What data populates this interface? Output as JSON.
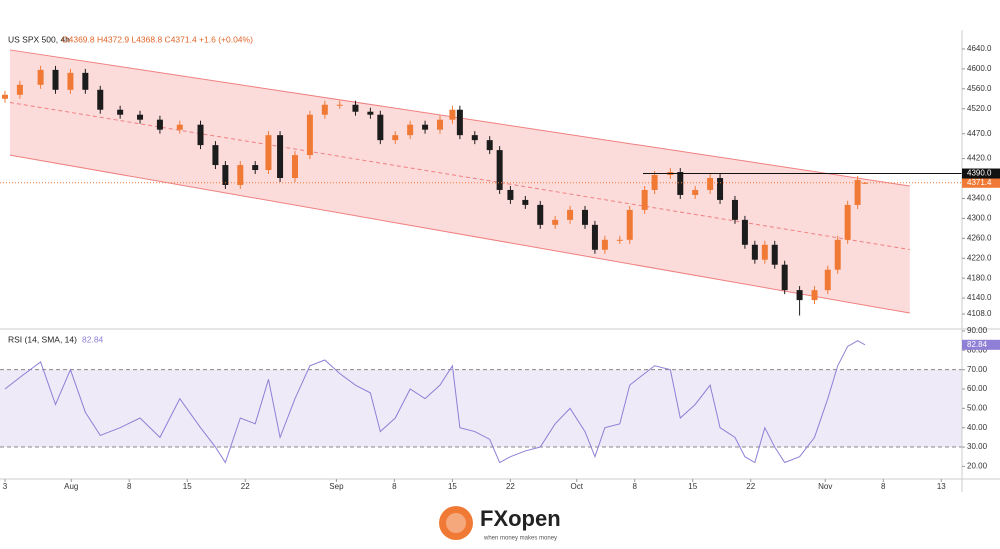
{
  "header": {
    "symbol": "US SPX 500, 4h",
    "quote": "O4369.8 H4372.9 L4368.8 C4371.4 +1.6 (+0.04%)"
  },
  "logo": {
    "brand": "FXopen",
    "tagline": "when money makes money"
  },
  "chart_data": [
    {
      "type": "candlestick",
      "x": [
        -8,
        -6.2,
        -3.7,
        -1.9,
        -0.1,
        1.7,
        3.5,
        5.9,
        8.3,
        10.7,
        13.1,
        15.6,
        17.4,
        18.6,
        20.4,
        22.2,
        23.8,
        25.2,
        27,
        28.8,
        30.6,
        32.4,
        34.3,
        36.1,
        37.3,
        39.1,
        40.9,
        42.7,
        44.5,
        46,
        46.9,
        48.7,
        50.5,
        51.7,
        53,
        54.8,
        56.6,
        58.4,
        60.2,
        62,
        63.2,
        64.4,
        66.2,
        67.4,
        69.2,
        70.4,
        72.3,
        73.5,
        75.3,
        77.1,
        78.3,
        80.1,
        81.3,
        82.5,
        83.7,
        84.9,
        86.1,
        87.9,
        89.7,
        91.3,
        92.5,
        93.7,
        94.9,
        95.8
      ],
      "open": [
        4540,
        4548,
        4568,
        4598,
        4558,
        4592,
        4558,
        4518,
        4508,
        4498,
        4478,
        4488,
        4447,
        4407,
        4367,
        4407,
        4397,
        4467,
        4381,
        4427,
        4508,
        4528,
        4528,
        4514,
        4508,
        4457,
        4467,
        4488,
        4478,
        4498,
        4518,
        4467,
        4457,
        4437,
        4357,
        4337,
        4327,
        4287,
        4297,
        4317,
        4287,
        4237,
        4257,
        4257,
        4317,
        4357,
        4387,
        4393,
        4347,
        4357,
        4381,
        4337,
        4297,
        4247,
        4217,
        4247,
        4207,
        4156,
        4136,
        4156,
        4197,
        4257,
        4327,
        4369.8
      ],
      "high": [
        4556,
        4576,
        4606,
        4606,
        4600,
        4600,
        4566,
        4526,
        4516,
        4506,
        4496,
        4496,
        4455,
        4415,
        4415,
        4415,
        4475,
        4475,
        4435,
        4516,
        4536,
        4536,
        4536,
        4522,
        4516,
        4475,
        4496,
        4496,
        4506,
        4526,
        4526,
        4475,
        4465,
        4445,
        4365,
        4345,
        4335,
        4305,
        4325,
        4325,
        4295,
        4265,
        4265,
        4325,
        4365,
        4395,
        4401,
        4401,
        4365,
        4389,
        4389,
        4345,
        4305,
        4255,
        4255,
        4255,
        4215,
        4164,
        4164,
        4205,
        4265,
        4335,
        4385,
        4372.9
      ],
      "low": [
        4532,
        4540,
        4560,
        4550,
        4550,
        4550,
        4510,
        4500,
        4490,
        4470,
        4470,
        4439,
        4399,
        4359,
        4359,
        4389,
        4389,
        4373,
        4373,
        4419,
        4500,
        4520,
        4506,
        4500,
        4449,
        4449,
        4459,
        4470,
        4470,
        4490,
        4459,
        4449,
        4429,
        4349,
        4329,
        4319,
        4279,
        4279,
        4289,
        4279,
        4229,
        4229,
        4249,
        4249,
        4309,
        4349,
        4379,
        4339,
        4339,
        4349,
        4329,
        4289,
        4239,
        4209,
        4209,
        4199,
        4148,
        4105,
        4128,
        4148,
        4189,
        4249,
        4319,
        4368.8
      ],
      "close": [
        4548,
        4568,
        4598,
        4558,
        4592,
        4558,
        4518,
        4508,
        4498,
        4478,
        4488,
        4447,
        4407,
        4367,
        4407,
        4397,
        4467,
        4381,
        4427,
        4508,
        4528,
        4528,
        4514,
        4508,
        4457,
        4467,
        4488,
        4478,
        4498,
        4518,
        4467,
        4457,
        4437,
        4357,
        4337,
        4327,
        4287,
        4297,
        4317,
        4287,
        4237,
        4257,
        4257,
        4317,
        4357,
        4387,
        4393,
        4347,
        4357,
        4381,
        4337,
        4297,
        4247,
        4217,
        4247,
        4207,
        4156,
        4136,
        4156,
        4197,
        4257,
        4327,
        4377,
        4371.4
      ],
      "up_color": "#f07a35",
      "down_color": "#1c1c1c",
      "ylim": [
        4080,
        4678
      ],
      "yticks": [
        {
          "value": 4640,
          "label": "4640.0"
        },
        {
          "value": 4600,
          "label": "4600.0"
        },
        {
          "value": 4560,
          "label": "4560.0"
        },
        {
          "value": 4520,
          "label": "4520.0"
        },
        {
          "value": 4470,
          "label": "4470.0"
        },
        {
          "value": 4420,
          "label": "4420.0"
        },
        {
          "value": 4340,
          "label": "4340.0"
        },
        {
          "value": 4300,
          "label": "4300.0"
        },
        {
          "value": 4260,
          "label": "4260.0"
        },
        {
          "value": 4220,
          "label": "4220.0"
        },
        {
          "value": 4180,
          "label": "4180.0"
        },
        {
          "value": 4140,
          "label": "4140.0"
        },
        {
          "value": 4108,
          "label": "4108.0"
        }
      ],
      "xlim": [
        -8.6,
        107.5
      ],
      "xticks": [
        {
          "value": -8,
          "label": "3"
        },
        {
          "value": 0,
          "label": "Aug"
        },
        {
          "value": 7,
          "label": "8"
        },
        {
          "value": 14,
          "label": "15"
        },
        {
          "value": 21,
          "label": "22"
        },
        {
          "value": 32,
          "label": "Sep"
        },
        {
          "value": 39,
          "label": "8"
        },
        {
          "value": 46,
          "label": "15"
        },
        {
          "value": 53,
          "label": "22"
        },
        {
          "value": 61,
          "label": "Oct"
        },
        {
          "value": 68,
          "label": "8"
        },
        {
          "value": 75,
          "label": "15"
        },
        {
          "value": 82,
          "label": "22"
        },
        {
          "value": 91,
          "label": "Nov"
        },
        {
          "value": 98,
          "label": "8"
        },
        {
          "value": 105,
          "label": "13"
        }
      ],
      "channel": {
        "x": [
          -7.4,
          101.2
        ],
        "upper": [
          4638,
          4365
        ],
        "lower": [
          4427,
          4110
        ],
        "color": "#f08080",
        "fill": "#fbd5d5"
      },
      "levels": [
        {
          "value": 4390,
          "label": "4390.0",
          "start": 69,
          "color": "#111111"
        }
      ],
      "last_price_color": "#f07a35"
    },
    {
      "type": "line",
      "title": "RSI (14, SMA, 14)",
      "series": [
        {
          "color": "#8f7fd6",
          "values": [
            60,
            66,
            74,
            52,
            70,
            48,
            36,
            40,
            45,
            35,
            55,
            40,
            30,
            22,
            45,
            42,
            65,
            35,
            55,
            72,
            75,
            68,
            62,
            58,
            38,
            45,
            60,
            55,
            62,
            72,
            40,
            38,
            34,
            22,
            25,
            28,
            30,
            42,
            50,
            38,
            25,
            40,
            42,
            62,
            68,
            72,
            70,
            45,
            52,
            62,
            40,
            35,
            25,
            22,
            40,
            30,
            22,
            25,
            35,
            55,
            72,
            82,
            85,
            82.84
          ]
        }
      ],
      "ylim": [
        14,
        90.5
      ],
      "yticks": [
        {
          "value": 20,
          "label": "20.00"
        },
        {
          "value": 30,
          "label": "30.00"
        },
        {
          "value": 40,
          "label": "40.00"
        },
        {
          "value": 50,
          "label": "50.00"
        },
        {
          "value": 60,
          "label": "60.00"
        },
        {
          "value": 70,
          "label": "70.00"
        },
        {
          "value": 80,
          "label": "80.00"
        },
        {
          "value": 90,
          "label": "90.00"
        }
      ],
      "bands": [
        30,
        70
      ],
      "band_fill": "#efeaf8"
    }
  ]
}
